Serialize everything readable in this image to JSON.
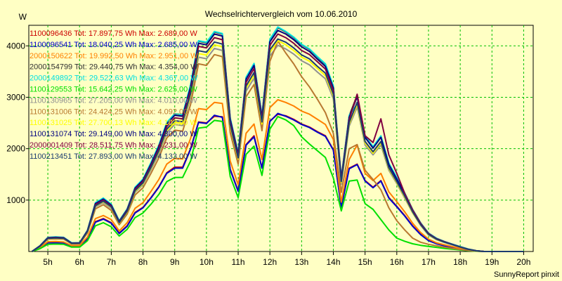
{
  "chart_data": {
    "type": "line",
    "title": "Wechselrichtervergleich vom 10.06.2010",
    "ylabel": "W",
    "xlabel": "",
    "footer": "SunnyReport pinxit",
    "x_ticks": [
      "5h",
      "6h",
      "7h",
      "8h",
      "9h",
      "10h",
      "11h",
      "12h",
      "13h",
      "14h",
      "15h",
      "16h",
      "17h",
      "18h",
      "19h",
      "20h"
    ],
    "y_ticks": [
      "1000",
      "2000",
      "3000",
      "4000"
    ],
    "xlim": [
      4.4,
      20.3
    ],
    "ylim": [
      0,
      4400
    ],
    "grid": true,
    "legend_position": "top-left",
    "x": [
      4.5,
      4.75,
      5.0,
      5.25,
      5.5,
      5.75,
      6.0,
      6.25,
      6.5,
      6.75,
      7.0,
      7.25,
      7.5,
      7.75,
      8.0,
      8.25,
      8.5,
      8.75,
      9.0,
      9.25,
      9.5,
      9.75,
      10.0,
      10.25,
      10.5,
      10.75,
      11.0,
      11.25,
      11.5,
      11.75,
      12.0,
      12.25,
      12.5,
      12.75,
      13.0,
      13.25,
      13.5,
      13.75,
      14.0,
      14.25,
      14.5,
      14.75,
      15.0,
      15.25,
      15.5,
      15.75,
      16.0,
      16.25,
      16.5,
      16.75,
      17.0,
      17.25,
      17.5,
      17.75,
      18.0,
      18.25,
      18.5,
      18.75,
      19.0,
      19.25,
      19.5,
      19.75,
      20.0
    ],
    "series": [
      {
        "name": "1100096436 Tot: 17.897,75 Wh Max: 2.689,00 W",
        "color": "#cc0000",
        "values": [
          0,
          70,
          175,
          175,
          170,
          105,
          105,
          250,
          580,
          640,
          560,
          360,
          500,
          760,
          860,
          1050,
          1260,
          1530,
          1640,
          1640,
          2000,
          2520,
          2500,
          2630,
          2620,
          1600,
          1180,
          2080,
          2250,
          1630,
          2540,
          2670,
          2640,
          2570,
          2480,
          2420,
          2330,
          2250,
          1980,
          870,
          1620,
          1700,
          1380,
          1250,
          1380,
          1050,
          880,
          700,
          500,
          340,
          220,
          160,
          120,
          90,
          55,
          30,
          10,
          0,
          0,
          0,
          0,
          0,
          0
        ]
      },
      {
        "name": "1100096541 Tot: 18.040,25 Wh Max: 2.685,00 W",
        "color": "#0000cc",
        "values": [
          0,
          70,
          170,
          170,
          165,
          100,
          100,
          245,
          570,
          630,
          550,
          350,
          490,
          750,
          850,
          1040,
          1250,
          1520,
          1620,
          1620,
          1990,
          2510,
          2490,
          2650,
          2610,
          1590,
          1170,
          2070,
          2230,
          1620,
          2530,
          2685,
          2630,
          2560,
          2470,
          2410,
          2320,
          2240,
          1970,
          860,
          1610,
          1690,
          1370,
          1240,
          1370,
          1040,
          870,
          690,
          490,
          330,
          210,
          150,
          110,
          85,
          50,
          25,
          10,
          0,
          0,
          0,
          0,
          0,
          0
        ]
      },
      {
        "name": "2000150622 Tot: 19.992,50 Wh Max: 2.951,00 W",
        "color": "#ff8000",
        "values": [
          0,
          75,
          190,
          195,
          185,
          115,
          115,
          280,
          640,
          700,
          620,
          400,
          560,
          840,
          950,
          1170,
          1400,
          1700,
          1810,
          1800,
          2200,
          2780,
          2760,
          2900,
          2880,
          1760,
          1300,
          2300,
          2480,
          1790,
          2800,
          2951,
          2900,
          2830,
          2730,
          2670,
          2570,
          2470,
          2180,
          960,
          1790,
          2070,
          1520,
          1380,
          1520,
          1160,
          970,
          770,
          550,
          370,
          240,
          170,
          130,
          95,
          60,
          30,
          12,
          0,
          0,
          0,
          0,
          0,
          0
        ]
      },
      {
        "name": "2000154799 Tot: 29.440,75 Wh Max: 4.354,00 W",
        "color": "#303030",
        "values": [
          0,
          110,
          270,
          280,
          270,
          165,
          170,
          410,
          940,
          1030,
          910,
          590,
          820,
          1240,
          1400,
          1720,
          2060,
          2500,
          2670,
          2650,
          3230,
          4090,
          4060,
          4270,
          4230,
          2590,
          1910,
          3380,
          3650,
          2640,
          4120,
          4354,
          4270,
          4160,
          4020,
          3930,
          3780,
          3640,
          3210,
          1420,
          2640,
          3040,
          2240,
          2030,
          2240,
          1710,
          1430,
          1130,
          810,
          550,
          350,
          250,
          190,
          140,
          90,
          45,
          15,
          0,
          0,
          0,
          0,
          0,
          0
        ]
      },
      {
        "name": "2000149892 Tot: 29.522,63 Wh Max: 4.367,00 W",
        "color": "#00e0e0",
        "values": [
          0,
          110,
          275,
          285,
          275,
          170,
          170,
          415,
          950,
          1040,
          920,
          600,
          830,
          1250,
          1410,
          1730,
          2070,
          2510,
          2680,
          2660,
          3250,
          4100,
          4070,
          4280,
          4240,
          2600,
          1920,
          3390,
          3660,
          2650,
          4130,
          4367,
          4280,
          4170,
          4030,
          3940,
          3790,
          3650,
          3220,
          1430,
          2650,
          2870,
          2250,
          2040,
          2250,
          1720,
          1440,
          1140,
          820,
          560,
          360,
          260,
          195,
          145,
          95,
          50,
          15,
          0,
          0,
          0,
          0,
          0,
          0
        ]
      },
      {
        "name": "1100129553 Tot: 15.642,25 Wh Max: 2.625,00 W",
        "color": "#00e000",
        "values": [
          0,
          55,
          140,
          145,
          140,
          85,
          85,
          210,
          500,
          560,
          480,
          300,
          430,
          660,
          750,
          920,
          1110,
          1360,
          1440,
          1440,
          1760,
          2400,
          2420,
          2550,
          2530,
          1460,
          1050,
          1890,
          2050,
          1480,
          2380,
          2625,
          2560,
          2450,
          2230,
          2090,
          1960,
          1830,
          1430,
          790,
          1370,
          1390,
          930,
          820,
          620,
          420,
          260,
          200,
          150,
          120,
          100,
          80,
          60,
          45,
          30,
          15,
          5,
          0,
          0,
          0,
          0,
          0,
          0
        ]
      },
      {
        "name": "1100130965 Tot: 27.205,00 Wh Max: 4.010,00 W",
        "color": "#909090",
        "values": [
          0,
          100,
          250,
          255,
          250,
          150,
          155,
          380,
          870,
          950,
          840,
          545,
          760,
          1150,
          1300,
          1590,
          1900,
          2310,
          2470,
          2450,
          2990,
          3780,
          3750,
          3950,
          3910,
          2390,
          1760,
          3120,
          3370,
          2440,
          3800,
          4010,
          3940,
          3840,
          3710,
          3630,
          3490,
          3360,
          2970,
          1310,
          2440,
          2810,
          2070,
          1880,
          2070,
          1580,
          1320,
          1040,
          750,
          510,
          320,
          230,
          175,
          130,
          85,
          40,
          15,
          0,
          0,
          0,
          0,
          0,
          0
        ]
      },
      {
        "name": "1100131006 Tot: 24.424,25 Wh Max: 4.092,00 W",
        "color": "#b87830",
        "values": [
          0,
          95,
          240,
          245,
          240,
          145,
          145,
          360,
          830,
          910,
          800,
          520,
          730,
          1100,
          1240,
          1520,
          1820,
          2210,
          2360,
          2340,
          2860,
          3650,
          3620,
          3830,
          3790,
          2310,
          1700,
          3010,
          3250,
          2350,
          3700,
          4092,
          3860,
          3650,
          3400,
          3200,
          2960,
          2700,
          2300,
          1150,
          2000,
          2080,
          1580,
          1400,
          1200,
          850,
          600,
          420,
          260,
          180,
          140,
          110,
          85,
          60,
          40,
          20,
          8,
          0,
          0,
          0,
          0,
          0,
          0
        ]
      },
      {
        "name": "1100131025 Tot: 27.700,13 Wh Max: 4.102,00 W",
        "color": "#ffff00",
        "values": [
          0,
          100,
          255,
          260,
          255,
          155,
          160,
          385,
          885,
          970,
          860,
          555,
          775,
          1170,
          1320,
          1620,
          1940,
          2350,
          2510,
          2490,
          3040,
          3850,
          3820,
          4020,
          3980,
          2440,
          1800,
          3180,
          3430,
          2480,
          3870,
          4102,
          4020,
          3910,
          3780,
          3700,
          3560,
          3420,
          3020,
          1340,
          2480,
          2860,
          2110,
          1910,
          2110,
          1610,
          1340,
          1060,
          760,
          520,
          330,
          235,
          180,
          135,
          85,
          42,
          15,
          0,
          0,
          0,
          0,
          0,
          0
        ]
      },
      {
        "name": "1100131074 Tot: 29.149,00 Wh Max: 4.300,00 W",
        "color": "#000080",
        "values": [
          0,
          108,
          268,
          275,
          268,
          163,
          168,
          405,
          930,
          1020,
          900,
          585,
          815,
          1230,
          1390,
          1700,
          2040,
          2480,
          2650,
          2630,
          3200,
          4050,
          4020,
          4230,
          4190,
          2570,
          1890,
          3350,
          3620,
          2610,
          4080,
          4300,
          4230,
          4120,
          3980,
          3890,
          3740,
          3600,
          3180,
          1410,
          2610,
          3010,
          2220,
          2010,
          2220,
          1690,
          1410,
          1120,
          800,
          545,
          345,
          248,
          188,
          140,
          88,
          44,
          15,
          0,
          0,
          0,
          0,
          0,
          0
        ]
      },
      {
        "name": "2000001409 Tot: 28.511,75 Wh Max: 4.231,00 W",
        "color": "#800040",
        "values": [
          0,
          104,
          262,
          270,
          262,
          160,
          164,
          398,
          910,
          1000,
          885,
          575,
          800,
          1210,
          1365,
          1670,
          2000,
          2430,
          2600,
          2580,
          3140,
          3990,
          3960,
          4160,
          4120,
          2520,
          1860,
          3290,
          3560,
          2570,
          4010,
          4231,
          4160,
          4050,
          3910,
          3830,
          3690,
          3550,
          3130,
          1390,
          2570,
          3060,
          2250,
          2120,
          2580,
          1880,
          1520,
          1130,
          810,
          550,
          350,
          250,
          190,
          140,
          90,
          45,
          15,
          0,
          0,
          0,
          0,
          0,
          0
        ]
      },
      {
        "name": "1100213451 Tot: 27.893,00 Wh Max: 4.133,00 W",
        "color": "#1c3c70",
        "values": [
          0,
          101,
          257,
          264,
          257,
          157,
          161,
          390,
          890,
          980,
          868,
          563,
          783,
          1185,
          1335,
          1635,
          1960,
          2380,
          2545,
          2525,
          3075,
          3905,
          3875,
          4075,
          4035,
          2470,
          1820,
          3220,
          3480,
          2520,
          3925,
          4133,
          4070,
          3960,
          3825,
          3745,
          3600,
          3470,
          3060,
          1360,
          2510,
          2900,
          2140,
          1940,
          2140,
          1630,
          1360,
          1080,
          770,
          525,
          335,
          240,
          182,
          137,
          86,
          43,
          15,
          0,
          0,
          0,
          0,
          0,
          0
        ]
      }
    ]
  }
}
